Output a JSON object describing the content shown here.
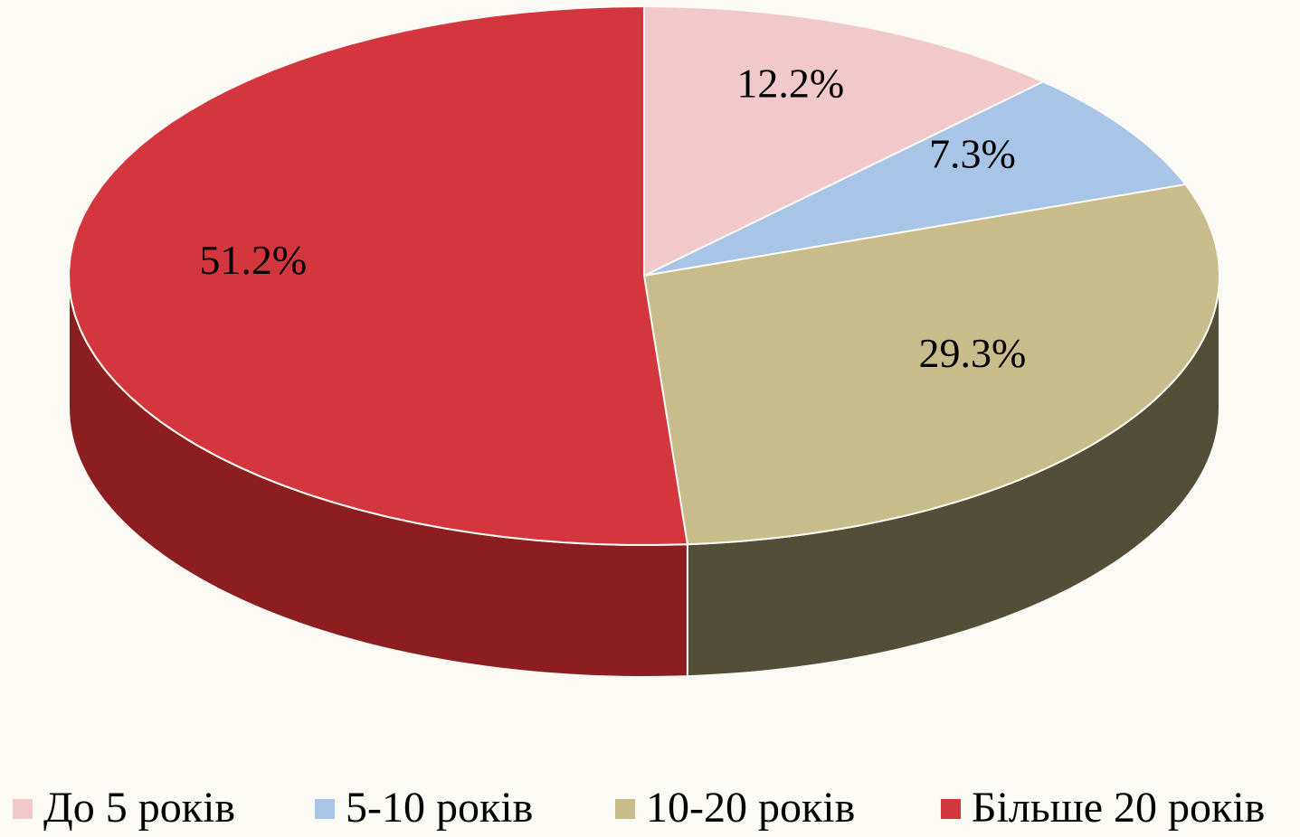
{
  "chart_data": {
    "type": "pie3d",
    "categories": [
      "До 5 років",
      "5-10 років",
      "10-20 років",
      "Більше 20 років"
    ],
    "values": [
      12.2,
      7.3,
      29.3,
      51.2
    ],
    "value_labels": [
      "12.2%",
      "7.3%",
      "29.3%",
      "51.2%"
    ],
    "colors": [
      "#f2c9cb",
      "#a8c4e6",
      "#c8bc8a",
      "#d3363c"
    ],
    "side_colors": [
      "#c9a0a2",
      "#7f9bbd",
      "#524e38",
      "#8c1e22"
    ],
    "legend": "bottom"
  }
}
